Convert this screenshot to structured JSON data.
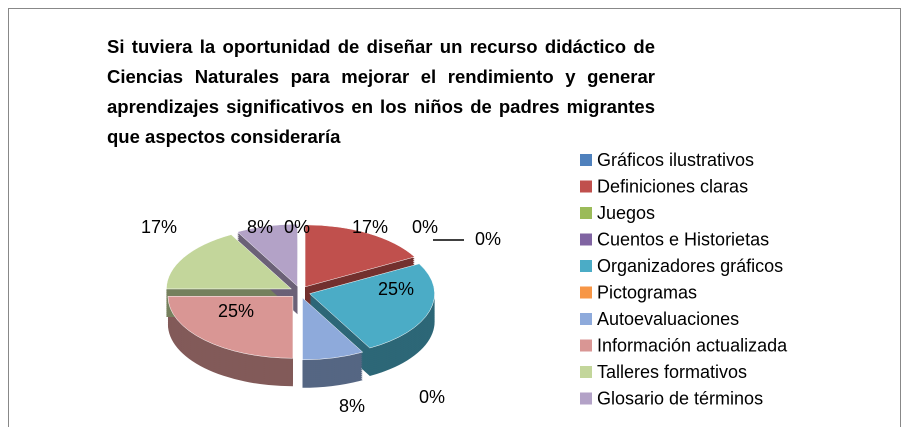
{
  "chart_data": {
    "type": "pie",
    "title": "Si tuviera la oportunidad de diseñar un recurso didáctico de Ciencias Naturales para mejorar el rendimiento y generar aprendizajes significativos en los niños  de padres migrantes que aspectos consideraría",
    "categories": [
      "Gráficos ilustrativos",
      "Definiciones claras",
      "Juegos",
      "Cuentos  e Historietas",
      "Organizadores gráficos",
      "Pictogramas",
      "Autoevaluaciones",
      "Información actualizada",
      "Talleres formativos",
      "Glosario de términos"
    ],
    "values": [
      0,
      17,
      0,
      0,
      25,
      0,
      8,
      25,
      17,
      8
    ],
    "value_labels": [
      "0%",
      "17%",
      "0%",
      "0%",
      "25%",
      "0%",
      "8%",
      "25%",
      "17%",
      "8%"
    ],
    "colors": [
      "#4f81bd",
      "#c0504d",
      "#9bbb59",
      "#8064a2",
      "#4bacc6",
      "#f79646",
      "#8eaadb",
      "#d99694",
      "#c3d69b",
      "#b3a2c7"
    ],
    "legend": "right"
  }
}
